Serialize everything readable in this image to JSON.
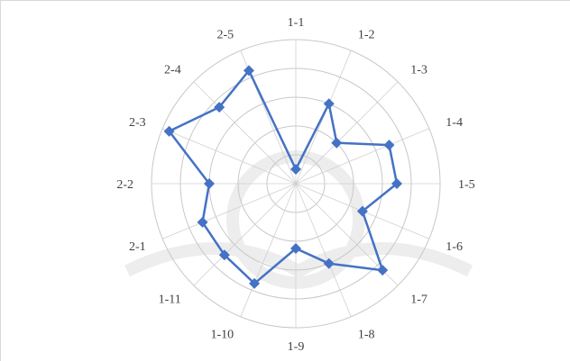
{
  "chart_data": {
    "type": "radar",
    "title": "",
    "categories": [
      "1-1",
      "1-2",
      "1-3",
      "1-4",
      "1-5",
      "1-6",
      "1-7",
      "1-8",
      "1-9",
      "1-10",
      "1-11",
      "2-1",
      "2-2",
      "2-3",
      "2-4",
      "2-5"
    ],
    "series": [
      {
        "color": "#4472C4",
        "values": [
          0.1,
          0.6,
          0.4,
          0.7,
          0.7,
          0.5,
          0.85,
          0.6,
          0.45,
          0.75,
          0.7,
          0.7,
          0.6,
          0.95,
          0.75,
          0.85
        ]
      }
    ],
    "rlim": [
      0,
      1
    ],
    "ring_count": 5,
    "grid": true,
    "legend": "none"
  }
}
